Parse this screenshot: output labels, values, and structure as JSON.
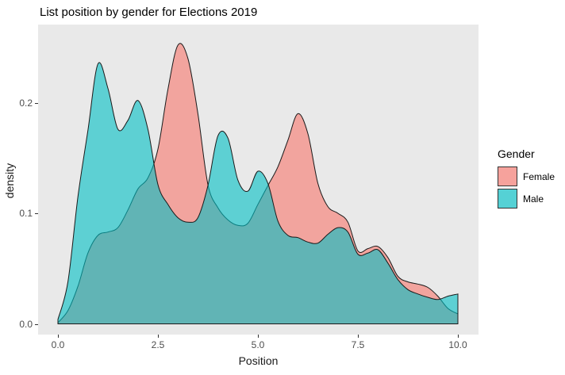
{
  "title": "List position by gender for Elections 2019",
  "chart_data": {
    "type": "area",
    "subtype": "overlaid-density-curves",
    "title": "List position by gender for Elections 2019",
    "xlabel": "Position",
    "ylabel": "density",
    "xlim": [
      0,
      10
    ],
    "ylim": [
      0,
      0.27
    ],
    "x_ticks": [
      "0.0",
      "2.5",
      "5.0",
      "7.5",
      "10.0"
    ],
    "y_ticks": [
      "0.0",
      "0.1",
      "0.2"
    ],
    "grid": false,
    "panel_bg": "#E9E9E9",
    "fill_opacity": 0.6,
    "stroke_color": "#1a1a1a",
    "legend": {
      "title": "Gender",
      "position": "right"
    },
    "x": [
      0,
      0.25,
      0.5,
      0.75,
      1.0,
      1.25,
      1.5,
      1.75,
      2.0,
      2.25,
      2.5,
      2.75,
      3.0,
      3.25,
      3.5,
      3.75,
      4.0,
      4.25,
      4.5,
      4.75,
      5.0,
      5.25,
      5.5,
      5.75,
      6.0,
      6.25,
      6.5,
      6.75,
      7.0,
      7.25,
      7.5,
      7.75,
      8.0,
      8.25,
      8.5,
      8.75,
      9.0,
      9.25,
      9.5,
      9.75,
      10.0
    ],
    "series": [
      {
        "name": "Female",
        "color": "#F8766D",
        "values": [
          0.001,
          0.012,
          0.034,
          0.064,
          0.08,
          0.083,
          0.087,
          0.103,
          0.122,
          0.132,
          0.158,
          0.212,
          0.252,
          0.24,
          0.19,
          0.126,
          0.105,
          0.094,
          0.089,
          0.091,
          0.108,
          0.125,
          0.142,
          0.166,
          0.19,
          0.172,
          0.127,
          0.106,
          0.1,
          0.092,
          0.066,
          0.068,
          0.07,
          0.06,
          0.043,
          0.038,
          0.036,
          0.033,
          0.025,
          0.014,
          0.009
        ]
      },
      {
        "name": "Male",
        "color": "#00BFC4",
        "values": [
          0.004,
          0.038,
          0.115,
          0.175,
          0.235,
          0.213,
          0.176,
          0.184,
          0.202,
          0.176,
          0.126,
          0.108,
          0.096,
          0.092,
          0.096,
          0.125,
          0.17,
          0.168,
          0.13,
          0.12,
          0.138,
          0.127,
          0.093,
          0.08,
          0.078,
          0.074,
          0.073,
          0.081,
          0.087,
          0.083,
          0.063,
          0.064,
          0.067,
          0.055,
          0.04,
          0.031,
          0.027,
          0.024,
          0.022,
          0.025,
          0.027
        ]
      }
    ]
  }
}
